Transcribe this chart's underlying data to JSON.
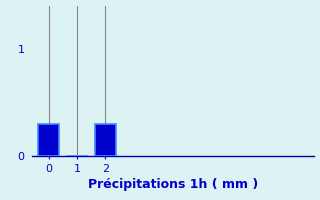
{
  "categories": [
    0,
    1,
    2
  ],
  "values": [
    0.3,
    0.0,
    0.3
  ],
  "bar_color": "#0000cc",
  "bar_edge_color": "#4488ff",
  "background_color": "#ddf2f2",
  "xlabel": "Précipitations 1h ( mm )",
  "xlabel_color": "#0000cc",
  "ylim": [
    0,
    1.4
  ],
  "xlim": [
    -0.6,
    9.4
  ],
  "yticks": [
    0,
    1
  ],
  "xticks": [
    0,
    1,
    2
  ],
  "grid_color": "#888888",
  "tick_color": "#0000cc",
  "axis_color": "#0000aa",
  "bar_width": 0.75,
  "xlabel_fontsize": 9
}
